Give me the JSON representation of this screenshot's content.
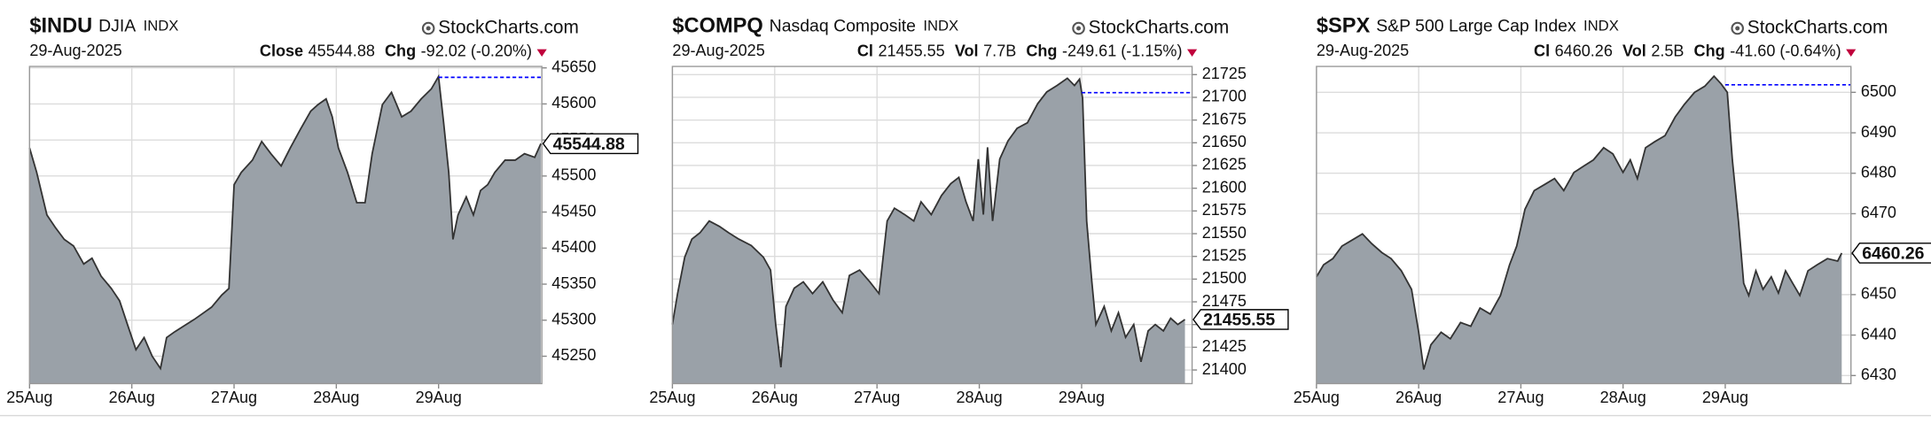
{
  "chart_data": [
    {
      "type": "area",
      "title": "$INDU",
      "subtitle": "DJIA",
      "exchange": "INDX",
      "watermark": "StockCharts.com",
      "date": "29-Aug-2025",
      "stats": [
        {
          "label": "Close",
          "value": 45544.88
        },
        {
          "label": "Chg",
          "value": "-92.02 (-0.20%)"
        }
      ],
      "x": [
        0,
        0.07,
        0.17,
        0.25,
        0.34,
        0.43,
        0.53,
        0.61,
        0.7,
        0.8,
        0.88,
        0.96,
        1.04,
        1.12,
        1.2,
        1.28,
        1.34,
        1.42,
        1.52,
        1.61,
        1.7,
        1.78,
        1.88,
        1.95,
        2.0,
        2.07,
        2.18,
        2.27,
        2.36,
        2.46,
        2.55,
        2.65,
        2.75,
        2.82,
        2.9,
        2.96,
        3.02,
        3.11,
        3.2,
        3.28,
        3.35,
        3.45,
        3.54,
        3.64,
        3.73,
        3.83,
        3.93,
        4.0,
        4.05,
        4.1,
        4.14,
        4.19,
        4.27,
        4.34,
        4.41,
        4.48,
        4.55,
        4.65,
        4.75,
        4.84,
        4.94,
        5.0
      ],
      "values": [
        45539,
        45505,
        45446,
        45429,
        45412,
        45403,
        45378,
        45386,
        45361,
        45344,
        45327,
        45293,
        45259,
        45276,
        45250,
        45233,
        45276,
        45284,
        45293,
        45301,
        45310,
        45318,
        45335,
        45344,
        45488,
        45505,
        45522,
        45548,
        45531,
        45514,
        45539,
        45565,
        45590,
        45599,
        45607,
        45582,
        45539,
        45505,
        45463,
        45463,
        45531,
        45599,
        45616,
        45582,
        45590,
        45607,
        45621,
        45638,
        45573,
        45505,
        45412,
        45446,
        45471,
        45446,
        45480,
        45488,
        45505,
        45522,
        45522,
        45531,
        45526,
        45544.88
      ],
      "reference_line": 45636.9,
      "reference_x": 4,
      "reference_color": "#0000ff",
      "color": "#9aa1a8",
      "line_color": "#333333",
      "grid": true,
      "xlim": [
        0,
        5.01
      ],
      "xticks": [
        {
          "value": 0,
          "label": "25Aug"
        },
        {
          "value": 1,
          "label": "26Aug"
        },
        {
          "value": 2,
          "label": "27Aug"
        },
        {
          "value": 3,
          "label": "28Aug"
        },
        {
          "value": 4,
          "label": "29Aug"
        }
      ],
      "ylim": [
        45212,
        45652
      ],
      "yticks": [
        45250,
        45300,
        45350,
        45400,
        45450,
        45500,
        45550,
        45600,
        45650
      ]
    },
    {
      "type": "area",
      "title": "$COMPQ",
      "subtitle": "Nasdaq Composite",
      "exchange": "INDX",
      "watermark": "StockCharts.com",
      "date": "29-Aug-2025",
      "stats": [
        {
          "label": "Cl",
          "value": 21455.55
        },
        {
          "label": "Vol",
          "value": "7.7B"
        },
        {
          "label": "Chg",
          "value": "-249.61 (-1.15%)"
        }
      ],
      "x": [
        0,
        0.05,
        0.12,
        0.19,
        0.27,
        0.36,
        0.46,
        0.55,
        0.65,
        0.77,
        0.89,
        0.96,
        1.01,
        1.06,
        1.11,
        1.19,
        1.28,
        1.37,
        1.47,
        1.57,
        1.66,
        1.73,
        1.83,
        1.93,
        2.02,
        2.1,
        2.17,
        2.27,
        2.36,
        2.43,
        2.53,
        2.63,
        2.72,
        2.8,
        2.87,
        2.94,
        2.99,
        3.04,
        3.08,
        3.13,
        3.2,
        3.28,
        3.37,
        3.47,
        3.57,
        3.66,
        3.76,
        3.86,
        3.93,
        3.98,
        4.01,
        4.05,
        4.1,
        4.14,
        4.22,
        4.29,
        4.36,
        4.43,
        4.51,
        4.58,
        4.65,
        4.72,
        4.8,
        4.87,
        4.94,
        5.01
      ],
      "values": [
        21450,
        21484,
        21524,
        21544,
        21551,
        21564,
        21558,
        21551,
        21544,
        21537,
        21524,
        21510,
        21450,
        21403,
        21470,
        21490,
        21497,
        21484,
        21497,
        21477,
        21463,
        21504,
        21510,
        21497,
        21484,
        21564,
        21578,
        21571,
        21564,
        21585,
        21571,
        21592,
        21605,
        21612,
        21585,
        21564,
        21632,
        21571,
        21645,
        21564,
        21632,
        21652,
        21666,
        21672,
        21693,
        21706,
        21713,
        21721,
        21713,
        21720,
        21699,
        21564,
        21497,
        21450,
        21470,
        21443,
        21463,
        21436,
        21450,
        21409,
        21443,
        21450,
        21443,
        21457,
        21450,
        21455.55
      ],
      "reference_line": 21705.16,
      "reference_x": 4,
      "reference_color": "#0000ff",
      "color": "#9aa1a8",
      "line_color": "#333333",
      "grid": true,
      "xlim": [
        0,
        5.08
      ],
      "xticks": [
        {
          "value": 0,
          "label": "25Aug"
        },
        {
          "value": 1,
          "label": "26Aug"
        },
        {
          "value": 2,
          "label": "27Aug"
        },
        {
          "value": 3,
          "label": "28Aug"
        },
        {
          "value": 4,
          "label": "29Aug"
        }
      ],
      "ylim": [
        21385,
        21734
      ],
      "yticks": [
        21400,
        21425,
        21450,
        21475,
        21500,
        21525,
        21550,
        21575,
        21600,
        21625,
        21650,
        21675,
        21700,
        21725
      ]
    },
    {
      "type": "area",
      "title": "$SPX",
      "subtitle": "S&P 500 Large Cap Index",
      "exchange": "INDX",
      "watermark": "StockCharts.com",
      "date": "29-Aug-2025",
      "stats": [
        {
          "label": "Cl",
          "value": 6460.26
        },
        {
          "label": "Vol",
          "value": "2.5B"
        },
        {
          "label": "Chg",
          "value": "-41.60 (-0.64%)"
        }
      ],
      "x": [
        0,
        0.07,
        0.16,
        0.25,
        0.35,
        0.45,
        0.54,
        0.64,
        0.73,
        0.83,
        0.93,
        1.0,
        1.05,
        1.12,
        1.22,
        1.31,
        1.41,
        1.51,
        1.6,
        1.7,
        1.8,
        1.89,
        1.96,
        2.04,
        2.13,
        2.23,
        2.33,
        2.42,
        2.52,
        2.61,
        2.71,
        2.81,
        2.9,
        3.0,
        3.07,
        3.14,
        3.22,
        3.31,
        3.41,
        3.51,
        3.6,
        3.7,
        3.8,
        3.89,
        3.96,
        4.02,
        4.07,
        4.13,
        4.18,
        4.23,
        4.3,
        4.37,
        4.45,
        4.52,
        4.59,
        4.66,
        4.73,
        4.81,
        4.9,
        5.0,
        5.1,
        5.14
      ],
      "values": [
        6454.4,
        6457.4,
        6458.9,
        6462,
        6463.5,
        6465,
        6462.6,
        6460.4,
        6458.9,
        6455.9,
        6451.3,
        6440.7,
        6431.5,
        6437.6,
        6440.7,
        6439.1,
        6443.1,
        6442.2,
        6446.7,
        6445.2,
        6449.8,
        6457.4,
        6462,
        6471.1,
        6475.7,
        6477.2,
        6478.7,
        6475.7,
        6480.2,
        6481.7,
        6483.3,
        6486.3,
        6484.8,
        6480.2,
        6483.3,
        6478.7,
        6486.3,
        6487.8,
        6489.3,
        6493.9,
        6497,
        6500,
        6501.5,
        6504,
        6502.1,
        6500,
        6483.3,
        6468,
        6452.8,
        6449.8,
        6455.9,
        6451.3,
        6454.4,
        6450.4,
        6455.9,
        6452.8,
        6449.8,
        6455.9,
        6457.4,
        6458.9,
        6458.3,
        6460.26
      ],
      "reference_line": 6501.86,
      "reference_x": 4,
      "reference_color": "#0000ff",
      "color": "#9aa1a8",
      "line_color": "#333333",
      "grid": true,
      "xlim": [
        0,
        5.23
      ],
      "xticks": [
        {
          "value": 0,
          "label": "25Aug"
        },
        {
          "value": 1,
          "label": "26Aug"
        },
        {
          "value": 2,
          "label": "27Aug"
        },
        {
          "value": 3,
          "label": "28Aug"
        },
        {
          "value": 4,
          "label": "29Aug"
        }
      ],
      "ylim": [
        6428,
        6506.4
      ],
      "yticks": [
        6430,
        6440,
        6450,
        6460,
        6470,
        6480,
        6490,
        6500
      ]
    }
  ]
}
